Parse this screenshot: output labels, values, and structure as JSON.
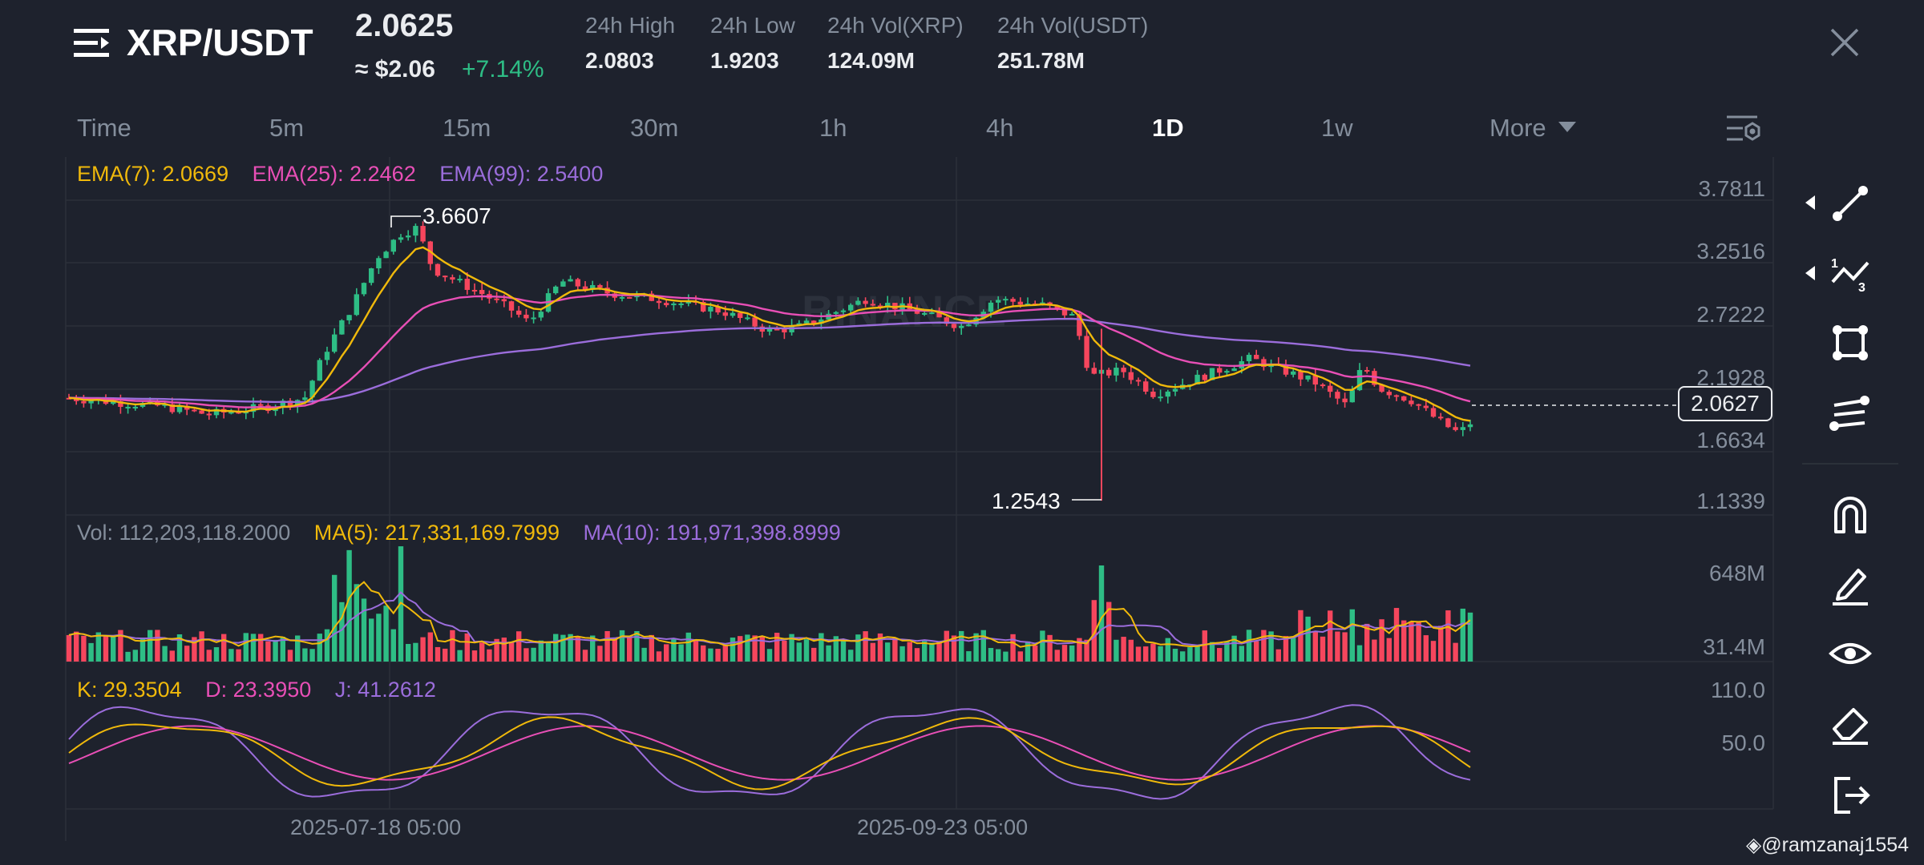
{
  "header": {
    "pair": "XRP/USDT",
    "price": "2.0625",
    "usd_price": "≈ $2.06",
    "change": "+7.14%",
    "stats": [
      {
        "label": "24h High",
        "value": "2.0803"
      },
      {
        "label": "24h Low",
        "value": "1.9203"
      },
      {
        "label": "24h Vol(XRP)",
        "value": "124.09M"
      },
      {
        "label": "24h Vol(USDT)",
        "value": "251.78M"
      }
    ]
  },
  "timeframes": [
    "Time",
    "5m",
    "15m",
    "30m",
    "1h",
    "4h",
    "1D",
    "1w",
    "More"
  ],
  "active_timeframe": "1D",
  "main_chart": {
    "ema7": "EMA(7): 2.0669",
    "ema25": "EMA(25): 2.2462",
    "ema99": "EMA(99): 2.5400",
    "y_ticks": [
      "3.7811",
      "3.2516",
      "2.7222",
      "2.1928",
      "1.6634",
      "1.1339"
    ],
    "high_marker": "3.6607",
    "low_marker": "1.2543",
    "current_price": "2.0627",
    "watermark": "BINANCE"
  },
  "volume_panel": {
    "vol": "Vol: 112,203,118.2000",
    "ma5": "MA(5): 217,331,169.7999",
    "ma10": "MA(10): 191,971,398.8999",
    "y_ticks": [
      "648M",
      "31.4M"
    ]
  },
  "kdj_panel": {
    "k": "K: 29.3504",
    "d": "D: 23.3950",
    "j": "J: 41.2612",
    "y_ticks": [
      "110.0",
      "50.0"
    ]
  },
  "x_labels": [
    "2025-07-18 05:00",
    "2025-09-23 05:00"
  ],
  "watermark_user": "@ramzanaj1554",
  "colors": {
    "up": "#2ebd85",
    "down": "#f6465d",
    "ema7": "#f0b90b",
    "ema25": "#e84fb6",
    "ema99": "#9b6ddb",
    "background": "#1e222d"
  },
  "tools": [
    "trend-line-icon",
    "fibonacci-icon",
    "rectangle-icon",
    "parallel-channel-icon",
    "magnet-icon",
    "pencil-icon",
    "eye-icon",
    "eraser-icon",
    "exit-icon"
  ]
}
